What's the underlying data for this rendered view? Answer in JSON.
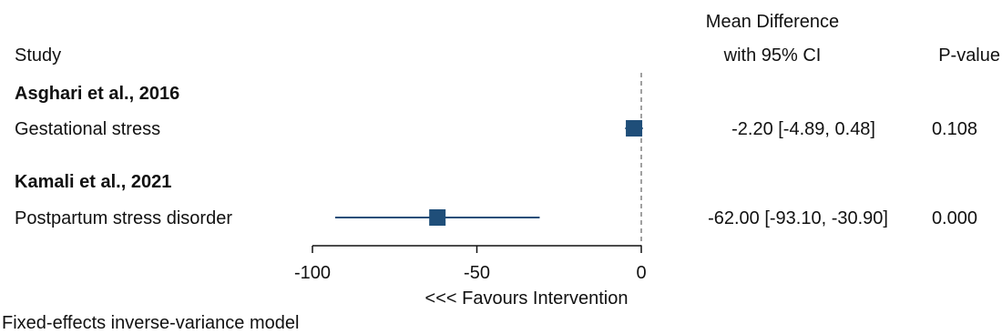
{
  "chart_data": {
    "type": "forest",
    "columns": {
      "study": "Study",
      "effect_line1": "Mean Difference",
      "effect_line2": "with 95% CI",
      "pvalue": "P-value"
    },
    "groups": [
      {
        "study": "Asghari et al., 2016",
        "rows": [
          {
            "label": "Gestational stress",
            "mean": -2.2,
            "lower": -4.89,
            "upper": 0.48,
            "ci_text": "-2.20 [-4.89, 0.48]",
            "p_text": "0.108"
          }
        ]
      },
      {
        "study": "Kamali et al., 2021",
        "rows": [
          {
            "label": "Postpartum stress disorder",
            "mean": -62.0,
            "lower": -93.1,
            "upper": -30.9,
            "ci_text": "-62.00 [-93.10, -30.90]",
            "p_text": "0.000"
          }
        ]
      }
    ],
    "x_axis": {
      "range": [
        -100,
        0
      ],
      "ticks": [
        -100,
        -50,
        0
      ],
      "tick_labels": [
        "-100",
        "-50",
        "0"
      ],
      "label": "<<< Favours Intervention"
    },
    "reference_line": 0,
    "footnote": "Fixed-effects inverse-variance model",
    "marker_color": "#1f4e79",
    "line_color": "#1f4e79"
  }
}
